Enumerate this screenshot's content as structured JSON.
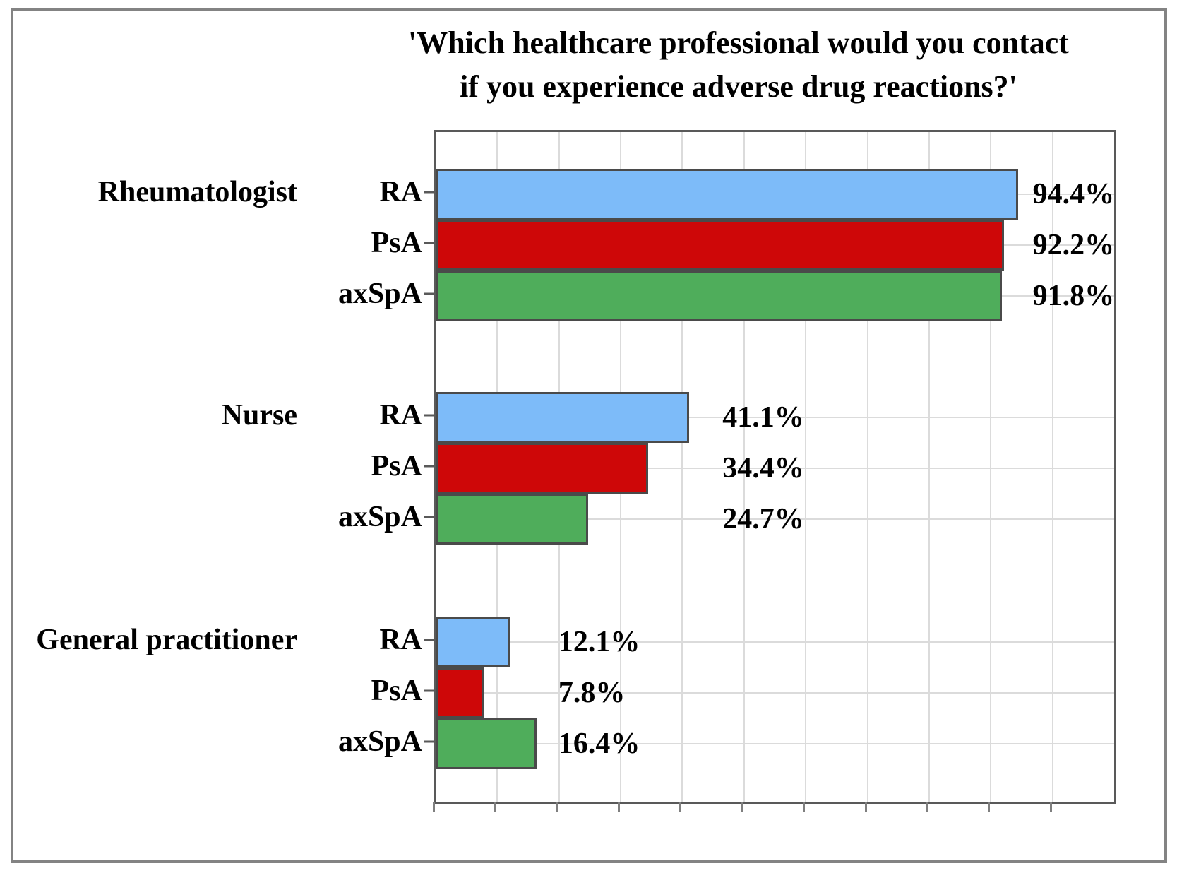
{
  "figure": {
    "background": "#ffffff",
    "frame_border_color": "#838383"
  },
  "chart_data": {
    "type": "bar",
    "orientation": "horizontal",
    "title": "'Which healthcare professional would you contact if you experience adverse drug reactions?'",
    "title_lines": [
      "'Which healthcare professional would you contact",
      "if you experience adverse drug reactions?'"
    ],
    "categories_per_group": [
      "RA",
      "PsA",
      "axSpA"
    ],
    "groups": [
      {
        "label": "Rheumatologist",
        "bars": [
          {
            "category": "RA",
            "value": 94.4,
            "value_label": "94.4%"
          },
          {
            "category": "PsA",
            "value": 92.2,
            "value_label": "92.2%"
          },
          {
            "category": "axSpA",
            "value": 91.8,
            "value_label": "91.8%"
          }
        ]
      },
      {
        "label": "Nurse",
        "bars": [
          {
            "category": "RA",
            "value": 41.1,
            "value_label": "41.1%"
          },
          {
            "category": "PsA",
            "value": 34.4,
            "value_label": "34.4%"
          },
          {
            "category": "axSpA",
            "value": 24.7,
            "value_label": "24.7%"
          }
        ]
      },
      {
        "label": "General practitioner",
        "bars": [
          {
            "category": "RA",
            "value": 12.1,
            "value_label": "12.1%"
          },
          {
            "category": "PsA",
            "value": 7.8,
            "value_label": "7.8%"
          },
          {
            "category": "axSpA",
            "value": 16.4,
            "value_label": "16.4%"
          }
        ]
      }
    ],
    "series_colors": {
      "RA": "#7dbbf9",
      "PsA": "#ce0708",
      "axSpA": "#4fad5b"
    },
    "bar_edge_color": "#4a4a4a",
    "xlim": [
      0,
      110
    ],
    "x_tick_step_pct": 10,
    "x_tick_labels_visible": false,
    "grid": {
      "vertical": true,
      "horizontal_at_category_rows": true,
      "color": "#dbdbdb"
    },
    "legend": "none",
    "value_label_x_pct": [
      96.8,
      46.5,
      19.9
    ],
    "unit": "%"
  }
}
